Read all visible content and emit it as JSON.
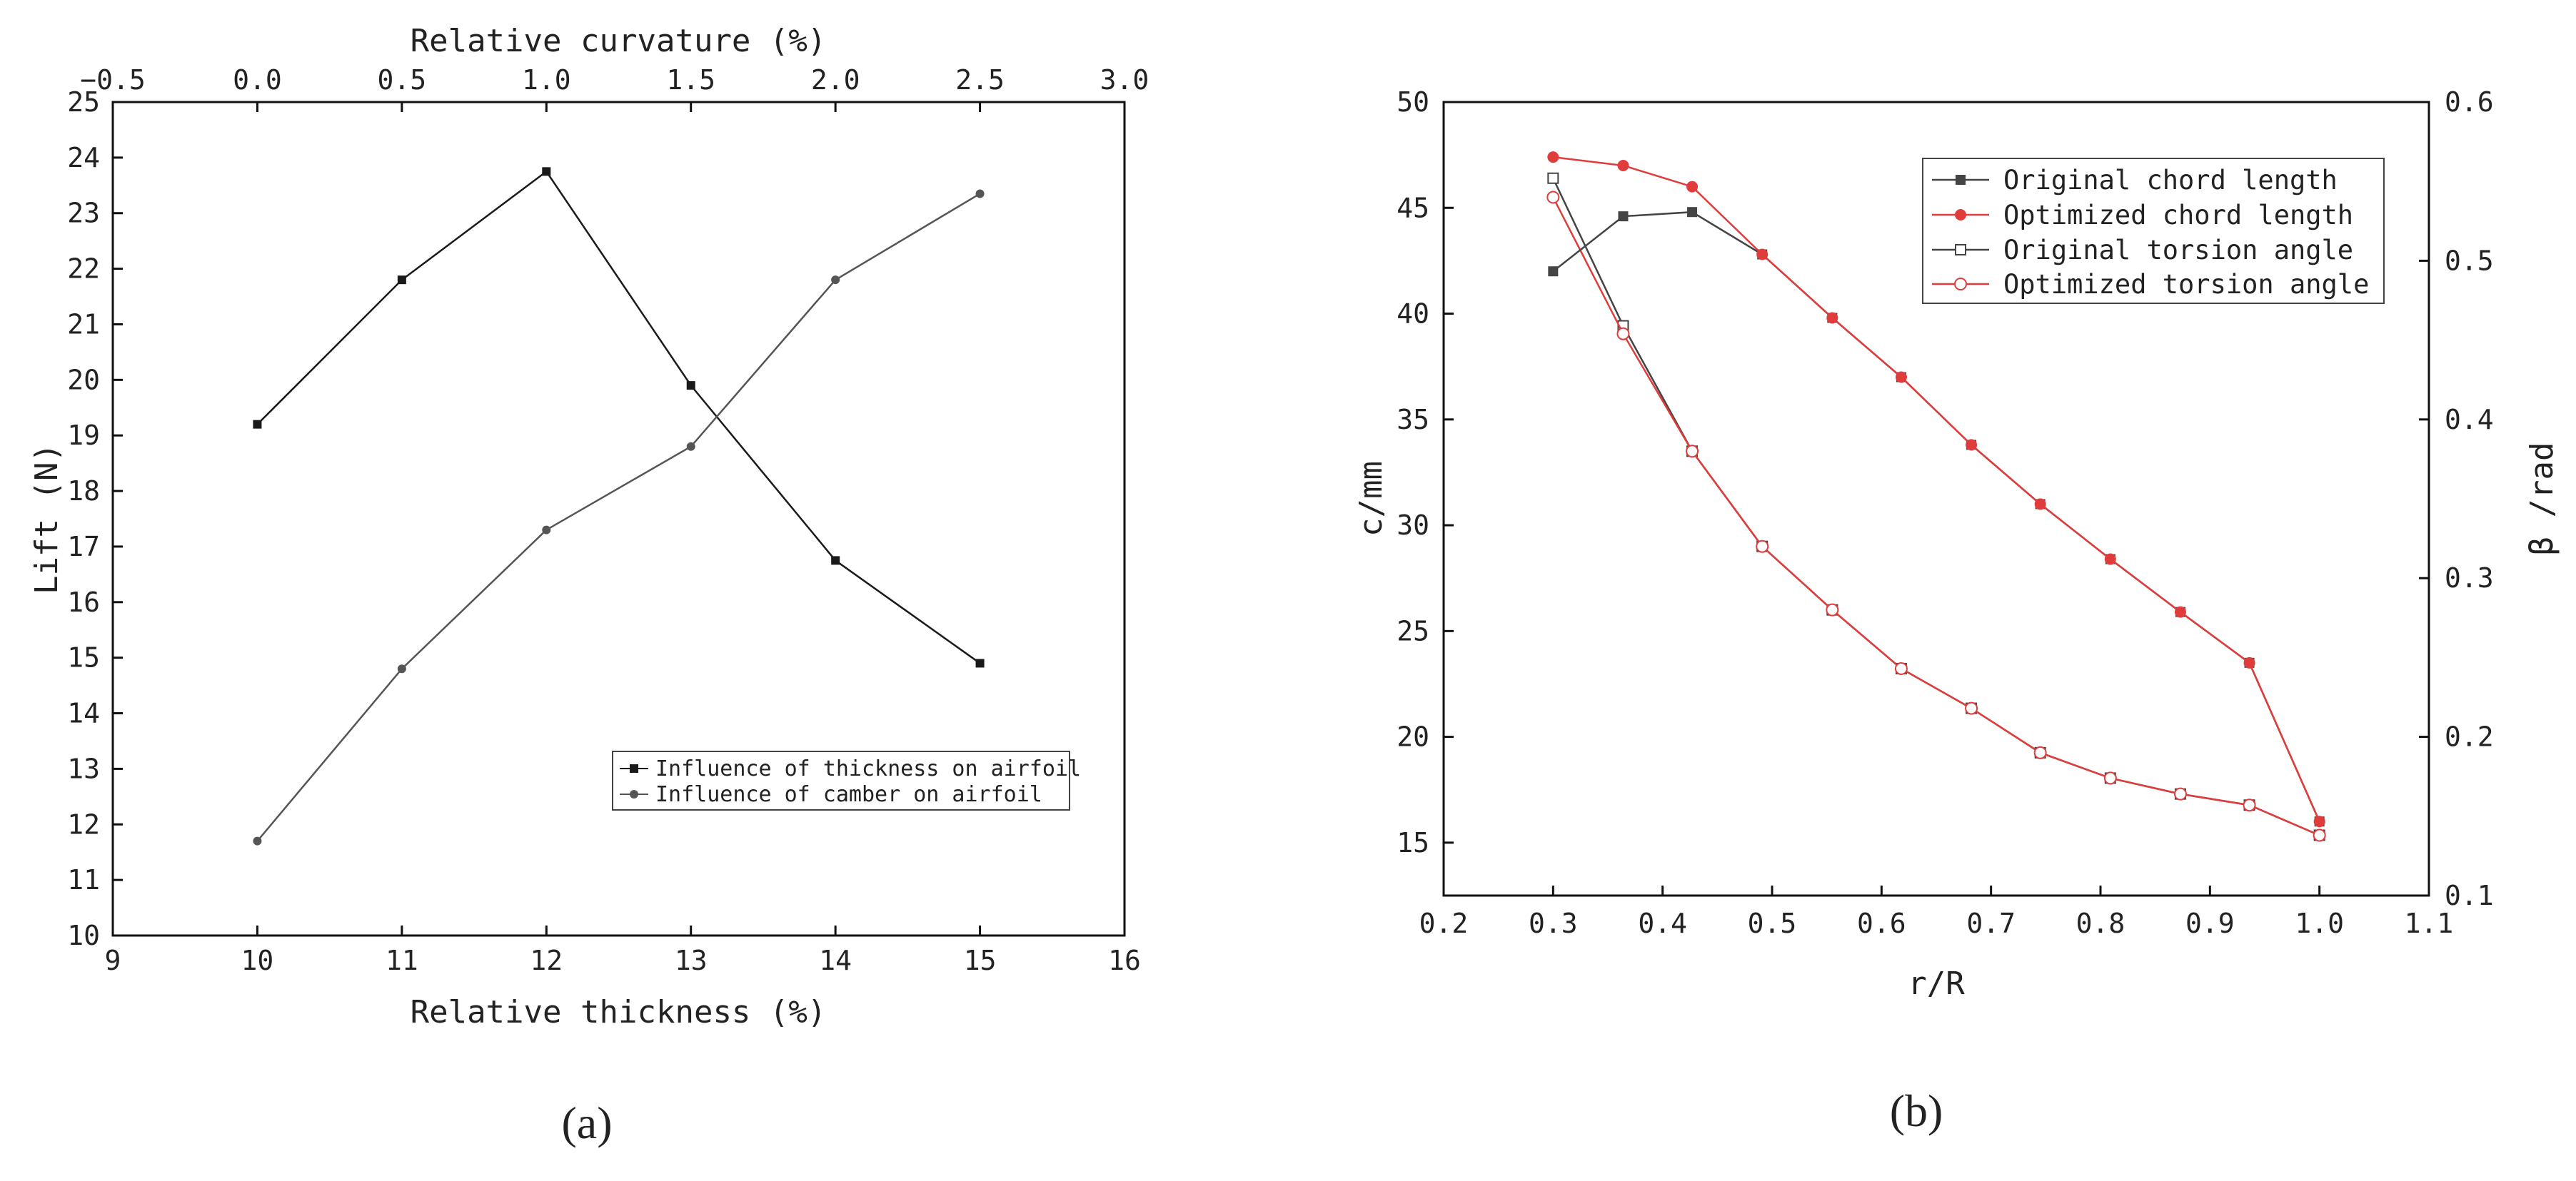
{
  "chart_data": [
    {
      "type": "line",
      "caption": "(a)",
      "x": [
        10,
        11,
        12,
        13,
        14,
        15
      ],
      "xlabel": "Relative thickness (%)",
      "ylabel": "Lift (N)",
      "x2label": "Relative curvature (%)",
      "xlim": [
        9,
        16
      ],
      "ylim": [
        10,
        25
      ],
      "x2lim": [
        -0.5,
        3.0
      ],
      "xticks": [
        "9",
        "10",
        "11",
        "12",
        "13",
        "14",
        "15",
        "16"
      ],
      "yticks": [
        "10",
        "11",
        "12",
        "13",
        "14",
        "15",
        "16",
        "17",
        "18",
        "19",
        "20",
        "21",
        "22",
        "23",
        "24",
        "25"
      ],
      "x2ticks": [
        "-0.5",
        "0.0",
        "0.5",
        "1.0",
        "1.5",
        "2.0",
        "2.5",
        "3.0"
      ],
      "legend_position": "bottom-right",
      "series": [
        {
          "name": "Influence of thickness on airfoil",
          "values": [
            19.2,
            21.8,
            23.75,
            19.9,
            16.75,
            14.9
          ],
          "color": "#1a1a1a",
          "marker": "square"
        },
        {
          "name": "Influence of camber on airfoil",
          "values": [
            11.7,
            14.8,
            17.3,
            18.8,
            21.8,
            23.35
          ],
          "color": "#555555",
          "marker": "circle"
        }
      ]
    },
    {
      "type": "line",
      "caption": "(b)",
      "x": [
        0.3,
        0.364,
        0.427,
        0.491,
        0.555,
        0.618,
        0.682,
        0.745,
        0.809,
        0.873,
        0.936,
        1.0
      ],
      "xlabel": "r/R",
      "ylabel": "c/mm",
      "y2label": "β /rad",
      "xlim": [
        0.2,
        1.1
      ],
      "ylim": [
        12.5,
        50
      ],
      "y2lim": [
        0.1,
        0.6
      ],
      "xticks": [
        "0.2",
        "0.3",
        "0.4",
        "0.5",
        "0.6",
        "0.7",
        "0.8",
        "0.9",
        "1.0",
        "1.1"
      ],
      "yticks": [
        "15",
        "20",
        "25",
        "30",
        "35",
        "40",
        "45",
        "50"
      ],
      "y2ticks": [
        "0.1",
        "0.2",
        "0.3",
        "0.4",
        "0.5",
        "0.6"
      ],
      "legend_position": "top-right",
      "series": [
        {
          "name": "Original chord length",
          "axis": "left",
          "values": [
            42.0,
            44.6,
            44.8,
            42.8,
            39.8,
            37.0,
            33.8,
            31.0,
            28.4,
            25.9,
            23.5,
            16.0
          ],
          "color": "#444444",
          "marker": "square-filled"
        },
        {
          "name": "Optimized chord length",
          "axis": "left",
          "values": [
            47.4,
            47.0,
            46.0,
            42.8,
            39.8,
            37.0,
            33.8,
            31.0,
            28.4,
            25.9,
            23.5,
            16.0
          ],
          "color": "#e03c3c",
          "marker": "circle-filled"
        },
        {
          "name": "Original torsion angle",
          "axis": "right",
          "values": [
            0.552,
            0.459,
            0.38,
            0.32,
            0.28,
            0.243,
            0.218,
            0.19,
            0.174,
            0.164,
            0.157,
            0.138
          ],
          "color": "#444444",
          "marker": "square-open"
        },
        {
          "name": "Optimized torsion angle",
          "axis": "right",
          "values": [
            0.54,
            0.454,
            0.38,
            0.32,
            0.28,
            0.243,
            0.218,
            0.19,
            0.174,
            0.164,
            0.157,
            0.138
          ],
          "color": "#e03c3c",
          "marker": "circle-open"
        }
      ]
    }
  ]
}
